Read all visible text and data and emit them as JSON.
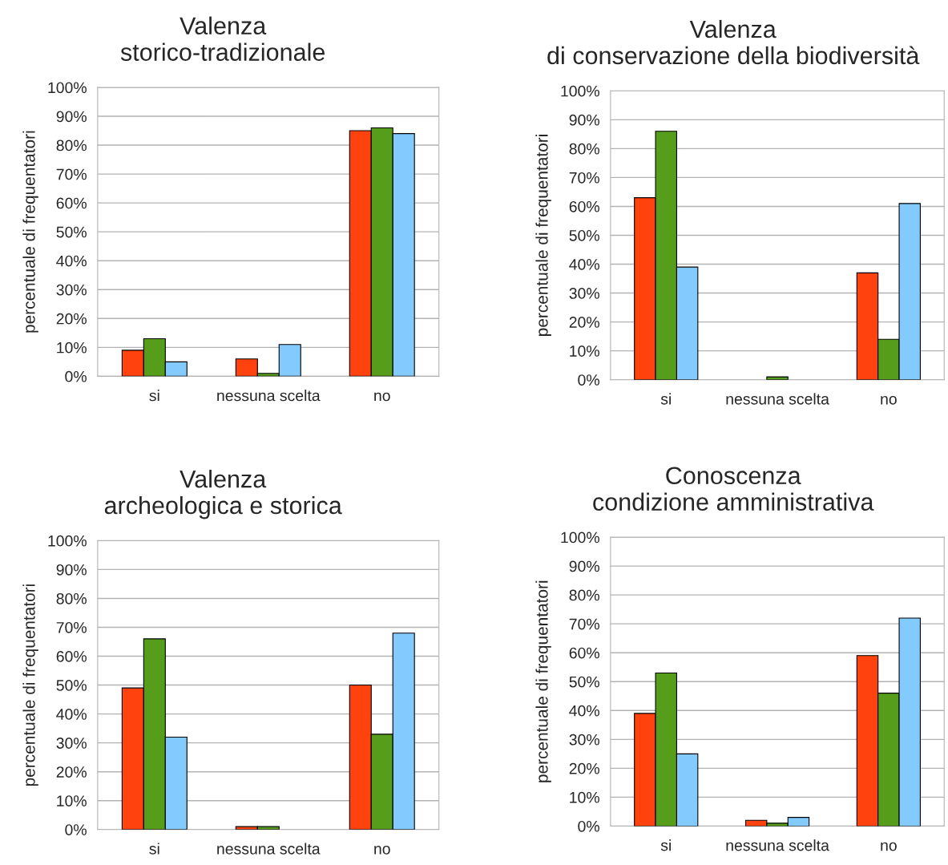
{
  "chart_data": [
    {
      "type": "bar",
      "title": "Valenza\nstorico-tradizionale",
      "ylabel": "percentuale di frequentatori",
      "categories": [
        "si",
        "nessuna scelta",
        "no"
      ],
      "ylim": [
        0,
        100
      ],
      "yticks": [
        {
          "value": 0,
          "label": "0%"
        },
        {
          "value": 10,
          "label": "10%"
        },
        {
          "value": 20,
          "label": "20%"
        },
        {
          "value": 30,
          "label": "30%"
        },
        {
          "value": 40,
          "label": "40%"
        },
        {
          "value": 50,
          "label": "50%"
        },
        {
          "value": 60,
          "label": "60%"
        },
        {
          "value": 70,
          "label": "70%"
        },
        {
          "value": 80,
          "label": "80%"
        },
        {
          "value": 90,
          "label": "90%"
        },
        {
          "value": 100,
          "label": "100%"
        }
      ],
      "grid": "y",
      "series": [
        {
          "color": "#ff420e",
          "values": [
            9,
            6,
            85
          ]
        },
        {
          "color": "#579d1c",
          "values": [
            13,
            1,
            86
          ]
        },
        {
          "color": "#83caff",
          "values": [
            5,
            11,
            84
          ]
        }
      ]
    },
    {
      "type": "bar",
      "title": "Valenza\ndi conservazione della biodiversità",
      "ylabel": "percentuale di frequentatori",
      "categories": [
        "si",
        "nessuna scelta",
        "no"
      ],
      "ylim": [
        0,
        100
      ],
      "yticks": [
        {
          "value": 0,
          "label": "0%"
        },
        {
          "value": 10,
          "label": "10%"
        },
        {
          "value": 20,
          "label": "20%"
        },
        {
          "value": 30,
          "label": "30%"
        },
        {
          "value": 40,
          "label": "40%"
        },
        {
          "value": 50,
          "label": "50%"
        },
        {
          "value": 60,
          "label": "60%"
        },
        {
          "value": 70,
          "label": "70%"
        },
        {
          "value": 80,
          "label": "80%"
        },
        {
          "value": 90,
          "label": "90%"
        },
        {
          "value": 100,
          "label": "100%"
        }
      ],
      "grid": "y",
      "series": [
        {
          "color": "#ff420e",
          "values": [
            63,
            0,
            37
          ]
        },
        {
          "color": "#579d1c",
          "values": [
            86,
            1,
            14
          ]
        },
        {
          "color": "#83caff",
          "values": [
            39,
            0,
            61
          ]
        }
      ]
    },
    {
      "type": "bar",
      "title": "Valenza\narcheologica e storica",
      "ylabel": "percentuale di frequentatori",
      "categories": [
        "si",
        "nessuna scelta",
        "no"
      ],
      "ylim": [
        0,
        100
      ],
      "yticks": [
        {
          "value": 0,
          "label": "0%"
        },
        {
          "value": 10,
          "label": "10%"
        },
        {
          "value": 20,
          "label": "20%"
        },
        {
          "value": 30,
          "label": "30%"
        },
        {
          "value": 40,
          "label": "40%"
        },
        {
          "value": 50,
          "label": "50%"
        },
        {
          "value": 60,
          "label": "60%"
        },
        {
          "value": 70,
          "label": "70%"
        },
        {
          "value": 80,
          "label": "80%"
        },
        {
          "value": 90,
          "label": "90%"
        },
        {
          "value": 100,
          "label": "100%"
        }
      ],
      "grid": "y",
      "series": [
        {
          "color": "#ff420e",
          "values": [
            49,
            1,
            50
          ]
        },
        {
          "color": "#579d1c",
          "values": [
            66,
            1,
            33
          ]
        },
        {
          "color": "#83caff",
          "values": [
            32,
            0,
            68
          ]
        }
      ]
    },
    {
      "type": "bar",
      "title": "Conoscenza\ncondizione amministrativa",
      "ylabel": "percentuale di frequentatori",
      "categories": [
        "si",
        "nessuna scelta",
        "no"
      ],
      "ylim": [
        0,
        100
      ],
      "yticks": [
        {
          "value": 0,
          "label": "0%"
        },
        {
          "value": 10,
          "label": "10%"
        },
        {
          "value": 20,
          "label": "20%"
        },
        {
          "value": 30,
          "label": "30%"
        },
        {
          "value": 40,
          "label": "40%"
        },
        {
          "value": 50,
          "label": "50%"
        },
        {
          "value": 60,
          "label": "60%"
        },
        {
          "value": 70,
          "label": "70%"
        },
        {
          "value": 80,
          "label": "80%"
        },
        {
          "value": 90,
          "label": "90%"
        },
        {
          "value": 100,
          "label": "100%"
        }
      ],
      "grid": "y",
      "series": [
        {
          "color": "#ff420e",
          "values": [
            39,
            2,
            59
          ]
        },
        {
          "color": "#579d1c",
          "values": [
            53,
            1,
            46
          ]
        },
        {
          "color": "#83caff",
          "values": [
            25,
            3,
            72
          ]
        }
      ]
    }
  ]
}
